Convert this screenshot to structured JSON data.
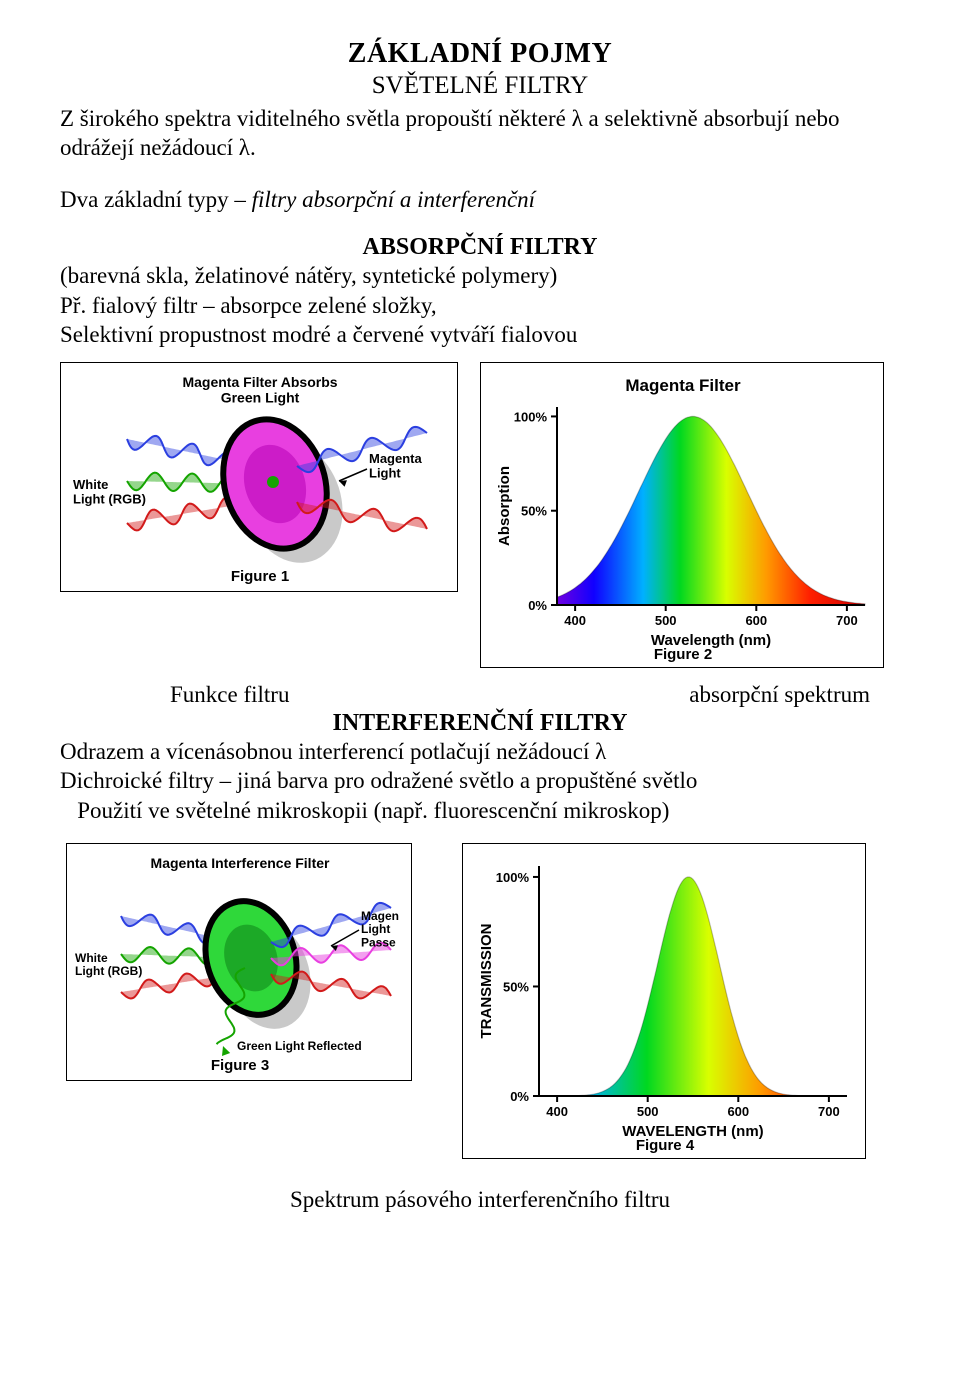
{
  "title_main": "ZÁKLADNÍ POJMY",
  "title_sub": "SVĚTELNÉ  FILTRY",
  "intro": "Z širokého spektra viditelného světla propouští některé λ a selektivně absorbují nebo odrážejí nežádoucí λ.",
  "types_line_pre": "Dva základní typy – ",
  "types_line_italic": "filtry absorpční a interferenční",
  "abs_heading": "ABSORPČNÍ  FILTRY",
  "abs_line1": "(barevná skla, želatinové nátěry, syntetické polymery)",
  "abs_line2": "Př. fialový filtr – absorpce zelené složky,",
  "abs_line3": "Selektivní propustnost  modré a červené  vytváří  fialovou",
  "fig1": {
    "title": "Magenta Filter Absorbs\nGreen Light",
    "white_label": "White\nLight (RGB)",
    "magenta_label": "Magenta\nLight",
    "blue": "#2b3fe0",
    "green": "#14a400",
    "red": "#d21a1a",
    "magenta": "#e83fe0",
    "magenta_dark": "#b400b4",
    "ring": "#000000",
    "caption": "Figure 1",
    "title_fontsize": 14,
    "label_fontsize": 13
  },
  "fig2": {
    "title": "Magenta Filter",
    "ylabel": "Absorption",
    "xlabel": "Wavelength (nm)",
    "yticks": [
      "0%",
      "50%",
      "100%"
    ],
    "xticks": [
      "400",
      "500",
      "600",
      "700"
    ],
    "caption": "Figure 2",
    "title_fontsize": 17,
    "label_fontsize": 15,
    "tick_fontsize": 13,
    "xlim": [
      380,
      720
    ],
    "ylim": [
      0,
      105
    ],
    "peak_x": 530,
    "peak_y": 100,
    "half_width_nm": 70,
    "spectrum_stops": [
      {
        "off": 0,
        "c": "#7000e0"
      },
      {
        "off": 0.12,
        "c": "#1000ff"
      },
      {
        "off": 0.28,
        "c": "#00b0ff"
      },
      {
        "off": 0.4,
        "c": "#00d820"
      },
      {
        "off": 0.55,
        "c": "#d8ff00"
      },
      {
        "off": 0.68,
        "c": "#ff9a00"
      },
      {
        "off": 0.82,
        "c": "#ff2000"
      },
      {
        "off": 1,
        "c": "#d00000"
      }
    ]
  },
  "funcrow_left": "Funkce filtru",
  "funcrow_right": "absorpční spektrum",
  "inter_heading": "INTERFERENČNÍ FILTRY",
  "inter_line1": "Odrazem a vícenásobnou interferencí potlačují nežádoucí λ",
  "inter_line2": "Dichroické filtry – jiná barva pro odražené světlo a propuštěné světlo",
  "inter_line3": "   Použití ve světelné mikroskopii (např. fluorescenční mikroskop)",
  "fig3": {
    "title": "Magenta Interference Filter",
    "white_label": "White\nLight (RGB)",
    "passed_label": "Magen\nLight\nPasse",
    "reflected_label": "Green Light Reflected",
    "blue": "#2b3fe0",
    "green": "#14a400",
    "red": "#d21a1a",
    "magenta": "#e83fe0",
    "filter_fill": "#2fd83a",
    "ring": "#000000",
    "caption": "Figure 3",
    "title_fontsize": 14,
    "label_fontsize": 12
  },
  "fig4": {
    "ylabel": "TRANSMISSION",
    "xlabel": "WAVELENGTH (nm)",
    "yticks": [
      "0%",
      "50%",
      "100%"
    ],
    "xticks": [
      "400",
      "500",
      "600",
      "700"
    ],
    "caption": "Figure 4",
    "label_fontsize": 15,
    "tick_fontsize": 13,
    "xlim": [
      380,
      720
    ],
    "ylim": [
      0,
      105
    ],
    "peak_x": 545,
    "peak_y": 100,
    "half_width_nm": 40,
    "spectrum_stops": [
      {
        "off": 0,
        "c": "#1000ff"
      },
      {
        "off": 0.15,
        "c": "#00b0ff"
      },
      {
        "off": 0.35,
        "c": "#00d820"
      },
      {
        "off": 0.55,
        "c": "#d8ff00"
      },
      {
        "off": 0.72,
        "c": "#ff9a00"
      },
      {
        "off": 0.88,
        "c": "#ff2000"
      },
      {
        "off": 1,
        "c": "#d00000"
      }
    ]
  },
  "bottom_caption": "Spektrum pásového interferenčního filtru"
}
